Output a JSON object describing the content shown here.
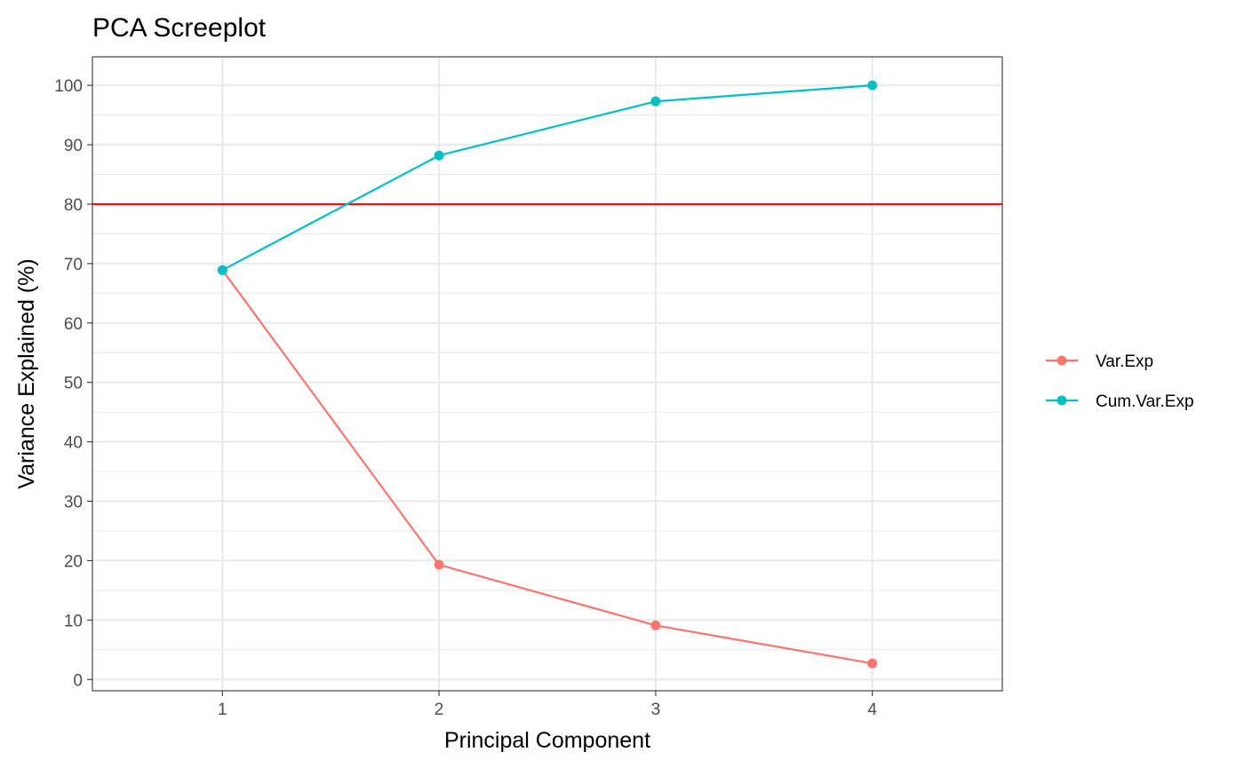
{
  "chart_data": {
    "type": "line",
    "title": "PCA Screeplot",
    "xlabel": "Principal Component",
    "ylabel": "Variance Explained (%)",
    "x": [
      1,
      2,
      3,
      4
    ],
    "xlim": [
      0.4,
      4.6
    ],
    "ylim": [
      -1.9,
      104.8
    ],
    "xticks": [
      1,
      2,
      3,
      4
    ],
    "yticks": [
      0,
      10,
      20,
      30,
      40,
      50,
      60,
      70,
      80,
      90,
      100
    ],
    "grid": true,
    "legend_position": "right",
    "reference_line": {
      "y": 80,
      "color": "#ee1111"
    },
    "series": [
      {
        "name": "Var.Exp",
        "values": [
          68.9,
          19.3,
          9.1,
          2.7
        ],
        "color": "#f8766d"
      },
      {
        "name": "Cum.Var.Exp",
        "values": [
          68.9,
          88.2,
          97.3,
          100
        ],
        "color": "#00bfc4"
      }
    ]
  }
}
